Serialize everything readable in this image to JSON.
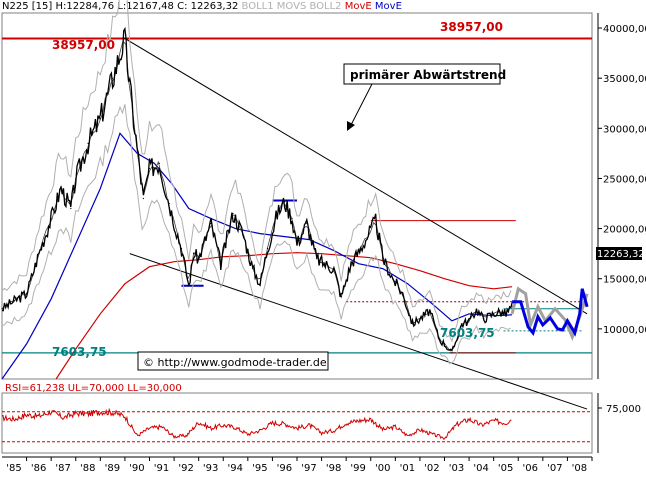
{
  "header": {
    "symbol": "N225 [15]",
    "ohlc": "H:12284,76 L:12167,48 C: 12263,32",
    "boll1": "BOLL1",
    "movs": "MOVS",
    "boll2": "BOLL2",
    "move_red": "MovE",
    "move_blue": "MovE"
  },
  "colors": {
    "price": "#000000",
    "boll": "#b0b0b0",
    "ma_blue": "#0000c0",
    "ma_red": "#d00000",
    "projection_blue": "#0000e0",
    "projection_gray": "#a0a0a0",
    "teal": "#008080",
    "maroon": "#800000"
  },
  "chart_data": [
    {
      "type": "line",
      "title": "",
      "x_labels": [
        "'85",
        "'86",
        "'87",
        "'88",
        "'89",
        "'90",
        "'91",
        "'92",
        "'93",
        "'94",
        "'95",
        "'96",
        "'97",
        "'98",
        "'99",
        "'00",
        "'01",
        "'02",
        "'03",
        "'04",
        "'05",
        "'06",
        "'07",
        "'08"
      ],
      "y_ticks": [
        "40000,00",
        "35000,00",
        "30000,00",
        "25000,00",
        "20000,00",
        "15000,00",
        "10000,00"
      ],
      "ylim": [
        5000,
        41500
      ],
      "current_value_label": "12263,32",
      "levels": [
        {
          "value": 38957,
          "label": "38957,00"
        },
        {
          "value": 7603.75,
          "label": "7603,75"
        }
      ],
      "annotations": {
        "trend_label": "primärer Abwärtstrend",
        "low_label": "7603,75",
        "copyright": "© http://www.godmode-trader.de"
      },
      "price_series": [
        [
          1985.0,
          12000
        ],
        [
          1985.5,
          12800
        ],
        [
          1986.0,
          13500
        ],
        [
          1986.5,
          17500
        ],
        [
          1987.0,
          21000
        ],
        [
          1987.4,
          24000
        ],
        [
          1987.8,
          22000
        ],
        [
          1988.0,
          25000
        ],
        [
          1988.5,
          28500
        ],
        [
          1989.0,
          31000
        ],
        [
          1989.5,
          35000
        ],
        [
          1989.99,
          38957
        ],
        [
          1990.3,
          32000
        ],
        [
          1990.75,
          23000
        ],
        [
          1991.0,
          26000
        ],
        [
          1991.4,
          26500
        ],
        [
          1991.8,
          22500
        ],
        [
          1992.3,
          18000
        ],
        [
          1992.6,
          14300
        ],
        [
          1992.8,
          17500
        ],
        [
          1993.0,
          17000
        ],
        [
          1993.5,
          20500
        ],
        [
          1993.9,
          16500
        ],
        [
          1994.4,
          21500
        ],
        [
          1994.8,
          19500
        ],
        [
          1995.2,
          16000
        ],
        [
          1995.5,
          14500
        ],
        [
          1995.8,
          18000
        ],
        [
          1996.2,
          21500
        ],
        [
          1996.5,
          22700
        ],
        [
          1996.8,
          21000
        ],
        [
          1997.0,
          18500
        ],
        [
          1997.4,
          20500
        ],
        [
          1997.8,
          17000
        ],
        [
          1998.1,
          16500
        ],
        [
          1998.5,
          16000
        ],
        [
          1998.8,
          13200
        ],
        [
          1999.2,
          16500
        ],
        [
          1999.6,
          18000
        ],
        [
          2000.2,
          20800
        ],
        [
          2000.5,
          17000
        ],
        [
          2000.9,
          15000
        ],
        [
          2001.3,
          13500
        ],
        [
          2001.7,
          10500
        ],
        [
          2002.0,
          11000
        ],
        [
          2002.4,
          11800
        ],
        [
          2002.8,
          8900
        ],
        [
          2003.0,
          8500
        ],
        [
          2003.3,
          7603
        ],
        [
          2003.7,
          10500
        ],
        [
          2004.0,
          10800
        ],
        [
          2004.3,
          11900
        ],
        [
          2004.6,
          11000
        ],
        [
          2004.9,
          11400
        ],
        [
          2005.2,
          11700
        ],
        [
          2005.5,
          11500
        ],
        [
          2005.75,
          12263
        ]
      ],
      "projection_blue": [
        [
          2005.75,
          12700
        ],
        [
          2006.1,
          12700
        ],
        [
          2006.4,
          10200
        ],
        [
          2006.6,
          9600
        ],
        [
          2006.8,
          11200
        ],
        [
          2007.0,
          10400
        ],
        [
          2007.3,
          11100
        ],
        [
          2007.6,
          10000
        ],
        [
          2007.8,
          9900
        ],
        [
          2008.0,
          10800
        ],
        [
          2008.3,
          9600
        ],
        [
          2008.5,
          11500
        ],
        [
          2008.6,
          14000
        ],
        [
          2008.8,
          12200
        ]
      ],
      "projection_gray": [
        [
          2005.75,
          11500
        ],
        [
          2006.0,
          14000
        ],
        [
          2006.3,
          13500
        ],
        [
          2006.5,
          10400
        ],
        [
          2006.8,
          12200
        ],
        [
          2007.1,
          10800
        ],
        [
          2007.5,
          12000
        ],
        [
          2007.9,
          10900
        ],
        [
          2008.2,
          9200
        ],
        [
          2008.5,
          11200
        ],
        [
          2008.8,
          13500
        ]
      ],
      "ma_blue": [
        [
          1985.0,
          5000
        ],
        [
          1986.0,
          8500
        ],
        [
          1987.0,
          13000
        ],
        [
          1988.0,
          18500
        ],
        [
          1989.0,
          24000
        ],
        [
          1989.8,
          29500
        ],
        [
          1990.5,
          27500
        ],
        [
          1991.2,
          26500
        ],
        [
          1991.9,
          24500
        ],
        [
          1992.6,
          22000
        ],
        [
          1993.5,
          21000
        ],
        [
          1994.5,
          20000
        ],
        [
          1995.5,
          19500
        ],
        [
          1996.5,
          19200
        ],
        [
          1997.5,
          18900
        ],
        [
          1998.5,
          17800
        ],
        [
          1999.5,
          16500
        ],
        [
          2000.5,
          16000
        ],
        [
          2001.5,
          14500
        ],
        [
          2002.5,
          12500
        ],
        [
          2003.3,
          10800
        ],
        [
          2004.0,
          11500
        ],
        [
          2005.0,
          11300
        ],
        [
          2005.75,
          11400
        ]
      ],
      "ma_red": [
        [
          1987.2,
          5000
        ],
        [
          1988.0,
          8000
        ],
        [
          1989.0,
          11500
        ],
        [
          1990.0,
          14500
        ],
        [
          1991.0,
          16200
        ],
        [
          1992.0,
          16700
        ],
        [
          1993.0,
          16900
        ],
        [
          1994.0,
          17200
        ],
        [
          1995.0,
          17300
        ],
        [
          1996.0,
          17500
        ],
        [
          1997.0,
          17600
        ],
        [
          1998.0,
          17500
        ],
        [
          1999.0,
          17300
        ],
        [
          2000.0,
          17100
        ],
        [
          2001.0,
          16500
        ],
        [
          2002.0,
          15800
        ],
        [
          2003.0,
          15000
        ],
        [
          2004.0,
          14300
        ],
        [
          2005.0,
          14000
        ],
        [
          2005.75,
          14200
        ]
      ],
      "trend_channel": {
        "upper": [
          [
            1990.0,
            38957
          ],
          [
            2008.8,
            11500
          ]
        ],
        "lower": [
          [
            1990.2,
            17500
          ],
          [
            2008.8,
            2000
          ]
        ]
      },
      "horizontal_segments": [
        {
          "value": 20800,
          "from": 2000.0,
          "to": 2005.9,
          "color_key": "ma_red"
        },
        {
          "value": 12700,
          "from": 1999.0,
          "to": 2008.6,
          "color_key": "maroon",
          "dashed": true
        },
        {
          "value": 9800,
          "from": 2005.4,
          "to": 2008.6,
          "color_key": "teal",
          "dashed": true
        },
        {
          "value": 12000,
          "from": 2005.4,
          "to": 2008.6,
          "color_key": "teal"
        },
        {
          "value": 7603.75,
          "from": 2003.2,
          "to": 2005.9,
          "color_key": "maroon"
        },
        {
          "value": 22800,
          "from": 1996.0,
          "to": 1997.0,
          "color_key": "ma_blue"
        },
        {
          "value": 14300,
          "from": 1992.3,
          "to": 1993.2,
          "color_key": "ma_blue"
        }
      ]
    },
    {
      "type": "line",
      "title": "RSI=61,238 UL=70,000 LL=30,000",
      "y_ticks": [
        "75,000"
      ],
      "ylim": [
        15,
        95
      ],
      "upper_level": 70,
      "lower_level": 30,
      "rsi_series": [
        [
          1985.0,
          62
        ],
        [
          1985.5,
          60
        ],
        [
          1986.0,
          66
        ],
        [
          1986.5,
          64
        ],
        [
          1987.0,
          70
        ],
        [
          1987.5,
          62
        ],
        [
          1988.0,
          68
        ],
        [
          1988.5,
          67
        ],
        [
          1989.0,
          70
        ],
        [
          1989.5,
          69
        ],
        [
          1990.0,
          64
        ],
        [
          1990.5,
          38
        ],
        [
          1991.0,
          48
        ],
        [
          1991.5,
          50
        ],
        [
          1992.0,
          37
        ],
        [
          1992.5,
          38
        ],
        [
          1993.0,
          56
        ],
        [
          1993.5,
          48
        ],
        [
          1994.0,
          52
        ],
        [
          1994.5,
          49
        ],
        [
          1995.0,
          40
        ],
        [
          1995.5,
          45
        ],
        [
          1996.0,
          55
        ],
        [
          1996.5,
          54
        ],
        [
          1997.0,
          48
        ],
        [
          1997.5,
          52
        ],
        [
          1998.0,
          42
        ],
        [
          1998.5,
          45
        ],
        [
          1999.0,
          55
        ],
        [
          1999.5,
          58
        ],
        [
          2000.0,
          60
        ],
        [
          2000.5,
          46
        ],
        [
          2001.0,
          50
        ],
        [
          2001.5,
          38
        ],
        [
          2002.0,
          46
        ],
        [
          2002.5,
          40
        ],
        [
          2003.0,
          35
        ],
        [
          2003.5,
          53
        ],
        [
          2004.0,
          60
        ],
        [
          2004.5,
          52
        ],
        [
          2005.0,
          58
        ],
        [
          2005.5,
          55
        ],
        [
          2005.75,
          61
        ]
      ]
    }
  ]
}
